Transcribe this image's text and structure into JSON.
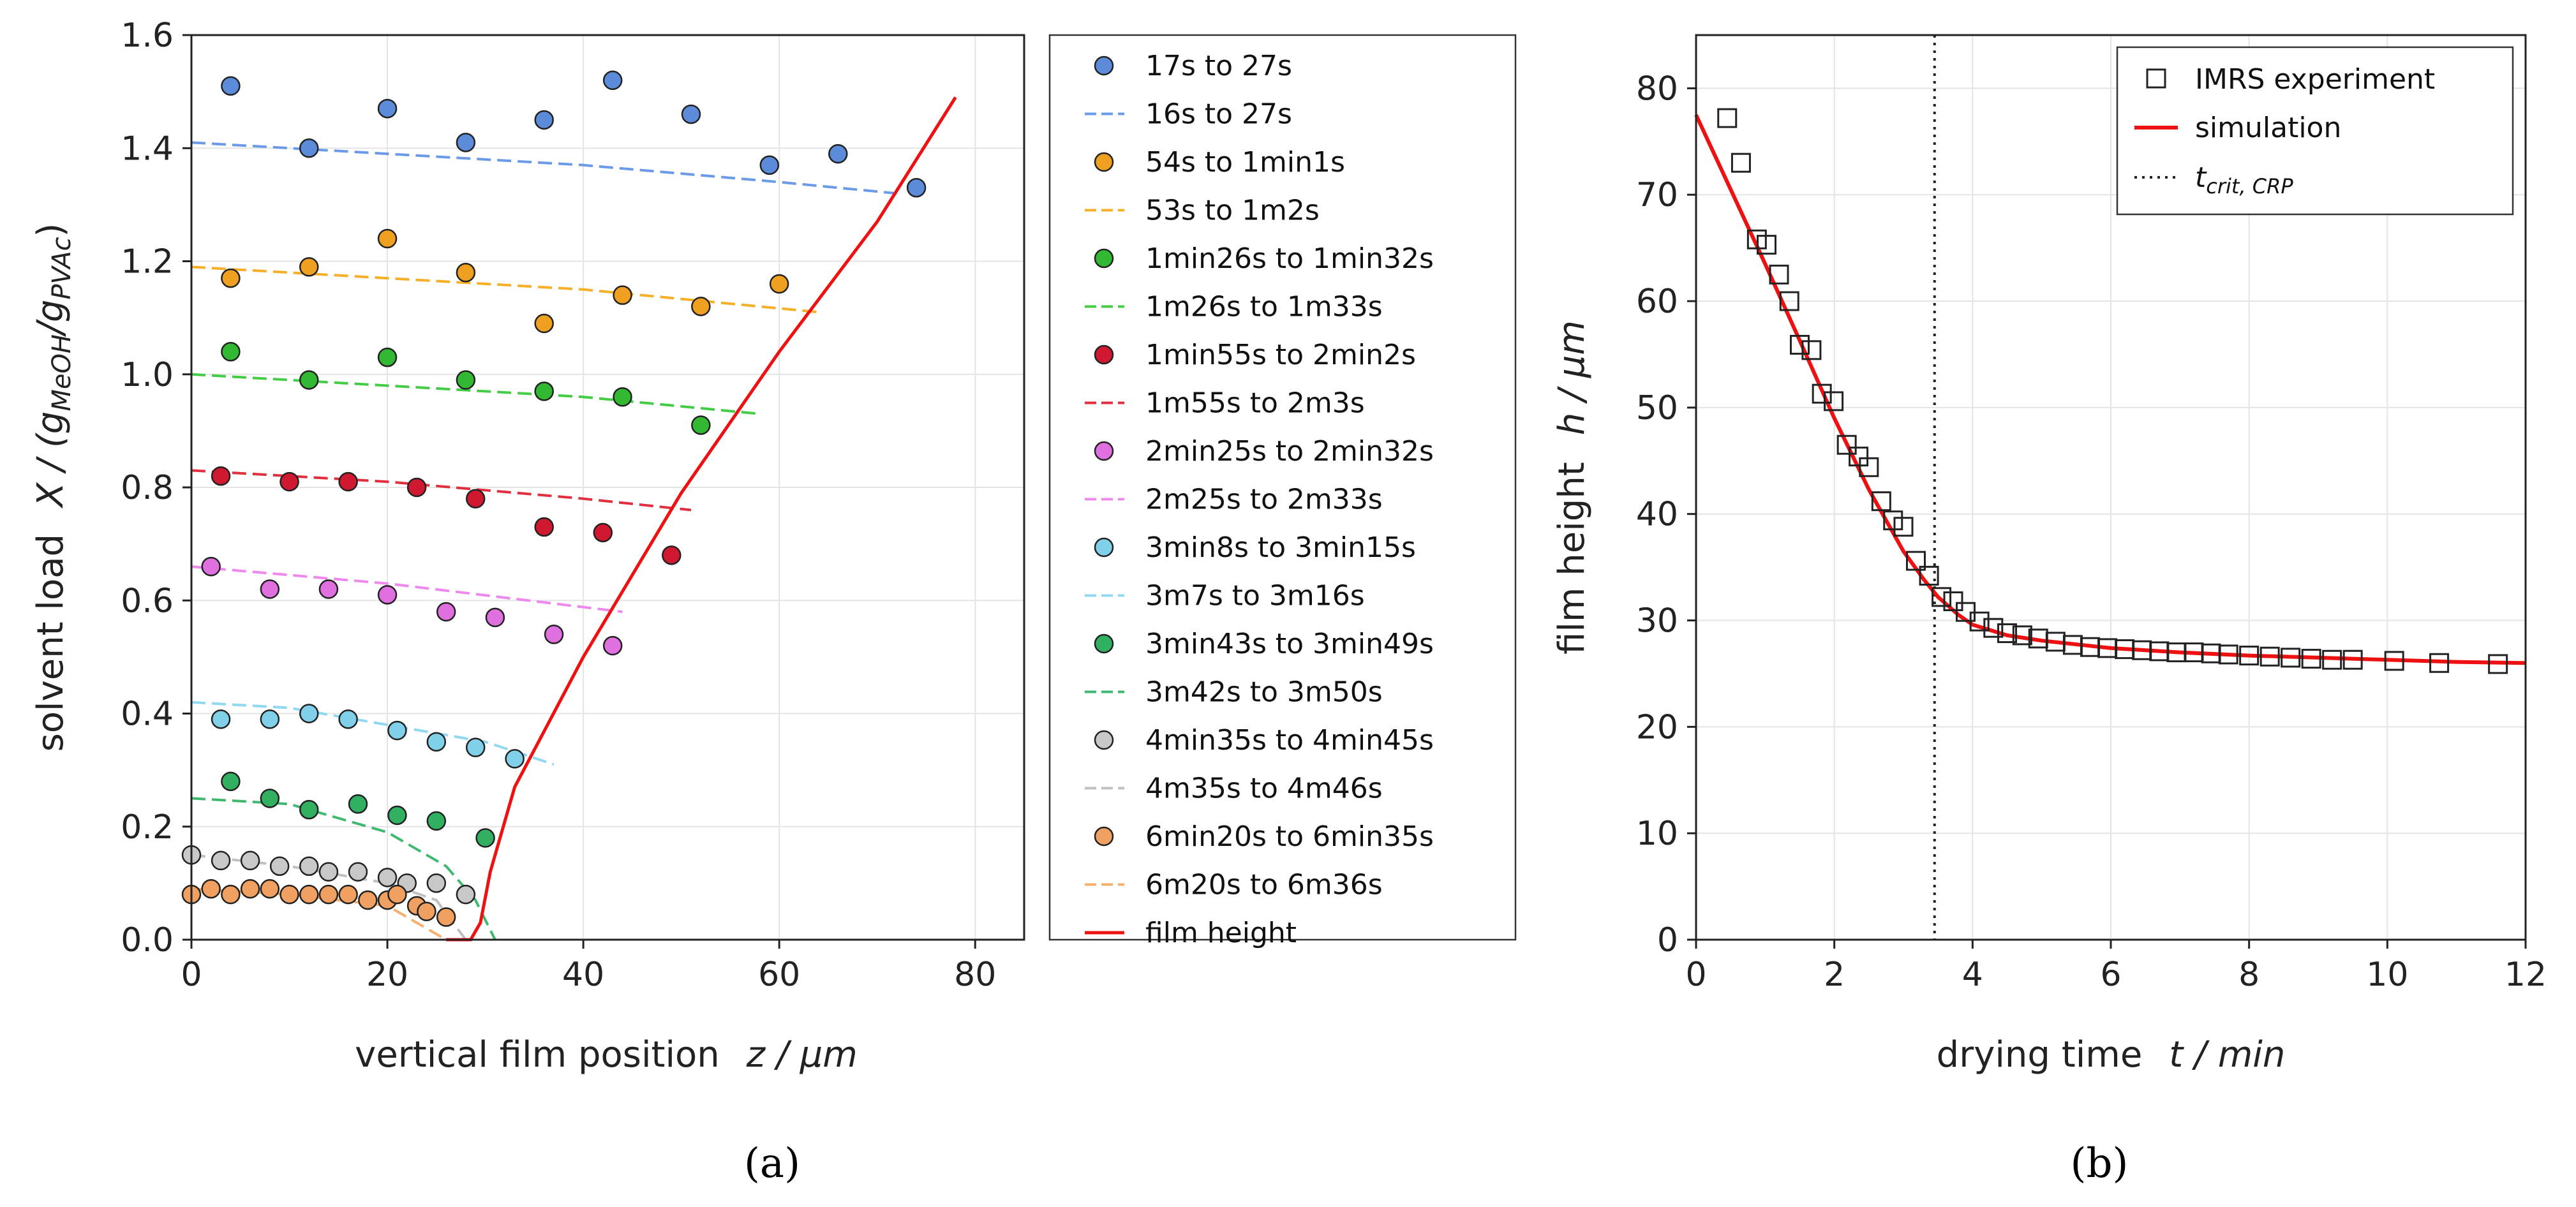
{
  "chart_data": [
    {
      "type": "scatter",
      "panel_label": "(a)",
      "xlabel_main": "vertical film position",
      "xlabel_var": "z / μm",
      "ylabel_main": "solvent load",
      "ylabel_var": "X / (g",
      "ylabel_sub1": "MeOH",
      "ylabel_mid": "/g",
      "ylabel_sub2": "PVAc",
      "ylabel_end": ")",
      "xlim": [
        0,
        85
      ],
      "ylim": [
        0,
        1.6
      ],
      "xticks": [
        0,
        20,
        40,
        60,
        80
      ],
      "yticks": [
        0.0,
        0.2,
        0.4,
        0.6,
        0.8,
        1.0,
        1.2,
        1.4,
        1.6
      ],
      "grid": true,
      "legend_position": "outside-right",
      "series": [
        {
          "name": "17s to 27s",
          "kind": "points",
          "color": "#5b8bd9",
          "x": [
            4,
            12,
            20,
            28,
            36,
            43,
            51,
            59,
            66,
            74
          ],
          "y": [
            1.51,
            1.4,
            1.47,
            1.41,
            1.45,
            1.52,
            1.46,
            1.37,
            1.39,
            1.33
          ]
        },
        {
          "name": "16s to 27s",
          "kind": "dashed",
          "color": "#6b9ae8",
          "x": [
            0,
            20,
            40,
            60,
            72
          ],
          "y": [
            1.41,
            1.39,
            1.37,
            1.34,
            1.32
          ]
        },
        {
          "name": "54s to 1min1s",
          "kind": "points",
          "color": "#f0a020",
          "x": [
            4,
            12,
            20,
            28,
            36,
            44,
            52,
            60
          ],
          "y": [
            1.17,
            1.19,
            1.24,
            1.18,
            1.09,
            1.14,
            1.12,
            1.16
          ]
        },
        {
          "name": "53s to 1m2s",
          "kind": "dashed",
          "color": "#f5b028",
          "x": [
            0,
            20,
            40,
            64
          ],
          "y": [
            1.19,
            1.17,
            1.15,
            1.11
          ]
        },
        {
          "name": "1min26s to 1min32s",
          "kind": "points",
          "color": "#33b833",
          "x": [
            4,
            12,
            20,
            28,
            36,
            44,
            52
          ],
          "y": [
            1.04,
            0.99,
            1.03,
            0.99,
            0.97,
            0.96,
            0.91
          ]
        },
        {
          "name": "1m26s to 1m33s",
          "kind": "dashed",
          "color": "#44cc44",
          "x": [
            0,
            20,
            40,
            58
          ],
          "y": [
            1.0,
            0.98,
            0.96,
            0.93
          ]
        },
        {
          "name": "1min55s to 2min2s",
          "kind": "points",
          "color": "#d01830",
          "x": [
            3,
            10,
            16,
            23,
            29,
            36,
            42,
            49
          ],
          "y": [
            0.82,
            0.81,
            0.81,
            0.8,
            0.78,
            0.73,
            0.72,
            0.68
          ]
        },
        {
          "name": "1m55s to 2m3s",
          "kind": "dashed",
          "color": "#e03040",
          "x": [
            0,
            20,
            40,
            51
          ],
          "y": [
            0.83,
            0.81,
            0.78,
            0.76
          ]
        },
        {
          "name": "2min25s to 2min32s",
          "kind": "points",
          "color": "#e070e0",
          "x": [
            2,
            8,
            14,
            20,
            26,
            31,
            37,
            43
          ],
          "y": [
            0.66,
            0.62,
            0.62,
            0.61,
            0.58,
            0.57,
            0.54,
            0.52
          ]
        },
        {
          "name": "2m25s to 2m33s",
          "kind": "dashed",
          "color": "#ee88ee",
          "x": [
            0,
            20,
            44
          ],
          "y": [
            0.66,
            0.63,
            0.58
          ]
        },
        {
          "name": "3min8s to 3min15s",
          "kind": "points",
          "color": "#80d0ea",
          "x": [
            3,
            8,
            12,
            16,
            21,
            25,
            29,
            33
          ],
          "y": [
            0.39,
            0.39,
            0.4,
            0.39,
            0.37,
            0.35,
            0.34,
            0.32
          ]
        },
        {
          "name": "3m7s to 3m16s",
          "kind": "dashed",
          "color": "#90d8f0",
          "x": [
            0,
            10,
            20,
            30,
            37
          ],
          "y": [
            0.42,
            0.41,
            0.38,
            0.35,
            0.31
          ]
        },
        {
          "name": "3min43s to 3min49s",
          "kind": "points",
          "color": "#30b060",
          "x": [
            4,
            8,
            12,
            17,
            21,
            25,
            30
          ],
          "y": [
            0.28,
            0.25,
            0.23,
            0.24,
            0.22,
            0.21,
            0.18
          ]
        },
        {
          "name": "3m42s to 3m50s",
          "kind": "dashed",
          "color": "#40b870",
          "x": [
            0,
            10,
            20,
            26,
            29,
            31
          ],
          "y": [
            0.25,
            0.24,
            0.19,
            0.13,
            0.07,
            0.0
          ]
        },
        {
          "name": "4min35s to 4min45s",
          "kind": "points",
          "color": "#c8c8c8",
          "x": [
            0,
            3,
            6,
            9,
            12,
            14,
            17,
            20,
            22,
            25,
            28
          ],
          "y": [
            0.15,
            0.14,
            0.14,
            0.13,
            0.13,
            0.12,
            0.12,
            0.11,
            0.1,
            0.1,
            0.08
          ]
        },
        {
          "name": "4m35s to 4m46s",
          "kind": "dashed",
          "color": "#c0c0c0",
          "x": [
            0,
            10,
            20,
            25,
            28
          ],
          "y": [
            0.15,
            0.13,
            0.1,
            0.07,
            0.0
          ]
        },
        {
          "name": "6min20s to 6min35s",
          "kind": "points",
          "color": "#f0a060",
          "x": [
            0,
            2,
            4,
            6,
            8,
            10,
            12,
            14,
            16,
            18,
            20,
            21,
            23,
            24,
            26
          ],
          "y": [
            0.08,
            0.09,
            0.08,
            0.09,
            0.09,
            0.08,
            0.08,
            0.08,
            0.08,
            0.07,
            0.07,
            0.08,
            0.06,
            0.05,
            0.04
          ]
        },
        {
          "name": "6m20s to 6m36s",
          "kind": "dashed",
          "color": "#f5b070",
          "x": [
            0,
            10,
            20,
            26
          ],
          "y": [
            0.09,
            0.08,
            0.06,
            0.0
          ]
        },
        {
          "name": "film height",
          "kind": "line",
          "color": "#ee1111",
          "x": [
            26,
            28.5,
            29.5,
            30.5,
            33,
            40,
            50,
            60,
            70,
            78
          ],
          "y": [
            0.0,
            0.0,
            0.03,
            0.12,
            0.27,
            0.5,
            0.79,
            1.04,
            1.27,
            1.49
          ]
        }
      ]
    },
    {
      "type": "scatter",
      "panel_label": "(b)",
      "xlabel_main": "drying time",
      "xlabel_var": "t / min",
      "ylabel_main": "film height",
      "ylabel_var": "h / μm",
      "xlim": [
        0,
        12
      ],
      "ylim": [
        0,
        85
      ],
      "xticks": [
        0,
        2,
        4,
        6,
        8,
        10,
        12
      ],
      "yticks": [
        0,
        10,
        20,
        30,
        40,
        50,
        60,
        70,
        80
      ],
      "grid": true,
      "legend_position": "top-right",
      "vline_x": 3.45,
      "legend": {
        "experiment": "IMRS experiment",
        "simulation": "simulation",
        "crit_main": "t",
        "crit_sub": "crit, CRP"
      },
      "series": [
        {
          "name": "IMRS experiment",
          "kind": "squares",
          "color": "#222222",
          "x": [
            0.45,
            0.65,
            0.88,
            1.02,
            1.2,
            1.35,
            1.5,
            1.67,
            1.82,
            1.99,
            2.18,
            2.35,
            2.5,
            2.68,
            2.85,
            3.0,
            3.18,
            3.37,
            3.55,
            3.72,
            3.9,
            4.1,
            4.3,
            4.5,
            4.72,
            4.95,
            5.2,
            5.45,
            5.7,
            5.95,
            6.2,
            6.45,
            6.7,
            6.95,
            7.2,
            7.45,
            7.7,
            8.0,
            8.3,
            8.6,
            8.9,
            9.2,
            9.5,
            10.1,
            10.75,
            11.6
          ],
          "y": [
            77.2,
            73.0,
            65.8,
            65.3,
            62.5,
            60.0,
            55.9,
            55.4,
            51.3,
            50.6,
            46.5,
            45.4,
            44.4,
            41.2,
            39.4,
            38.8,
            35.6,
            34.2,
            32.2,
            31.8,
            30.8,
            29.9,
            29.3,
            28.8,
            28.6,
            28.3,
            28.0,
            27.7,
            27.5,
            27.4,
            27.3,
            27.2,
            27.1,
            27.0,
            27.0,
            26.9,
            26.8,
            26.7,
            26.6,
            26.5,
            26.4,
            26.3,
            26.3,
            26.2,
            26.0,
            25.9
          ]
        },
        {
          "name": "simulation",
          "kind": "line",
          "color": "#ee1111",
          "x": [
            0,
            0.5,
            1.0,
            1.5,
            2.0,
            2.5,
            3.0,
            3.3,
            3.5,
            3.8,
            4.0,
            4.5,
            5.0,
            6.0,
            7.0,
            8.0,
            9.0,
            10.0,
            11.0,
            12.0
          ],
          "y": [
            77.5,
            70.5,
            63.5,
            56.3,
            49.0,
            42.3,
            36.5,
            33.8,
            32.2,
            30.5,
            29.6,
            28.6,
            28.1,
            27.4,
            27.0,
            26.7,
            26.5,
            26.3,
            26.1,
            26.0
          ]
        }
      ]
    }
  ]
}
